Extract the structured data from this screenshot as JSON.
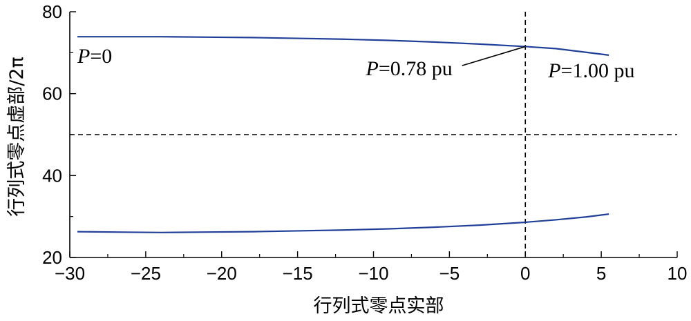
{
  "chart_data": {
    "type": "line",
    "xlabel": "行列式零点实部",
    "ylabel": "行列式零点虚部/2π",
    "xlim": [
      -30,
      10
    ],
    "ylim": [
      20,
      80
    ],
    "xticks": [
      -30,
      -25,
      -20,
      -15,
      -10,
      -5,
      0,
      5,
      10
    ],
    "xtick_labels": [
      "−30",
      "−25",
      "−20",
      "−15",
      "−10",
      "−5",
      "0",
      "5",
      "10"
    ],
    "yticks": [
      20,
      40,
      60,
      80
    ],
    "ytick_labels": [
      "20",
      "40",
      "60",
      "80"
    ],
    "grid": false,
    "series_color": "#1f3f99",
    "series": [
      {
        "x": [
          -29.5,
          -27,
          -24,
          -21,
          -18,
          -15,
          -12,
          -9,
          -6,
          -3,
          0,
          2,
          4,
          5.5
        ],
        "y": [
          73.9,
          73.9,
          73.9,
          73.8,
          73.7,
          73.5,
          73.3,
          73.0,
          72.6,
          72.1,
          71.5,
          71.0,
          70.1,
          69.4
        ]
      },
      {
        "x": [
          -29.5,
          -27,
          -24,
          -21,
          -18,
          -15,
          -12,
          -9,
          -6,
          -3,
          0,
          2,
          4,
          5.5
        ],
        "y": [
          26.3,
          26.2,
          26.1,
          26.2,
          26.3,
          26.5,
          26.7,
          27.0,
          27.4,
          27.9,
          28.6,
          29.2,
          29.9,
          30.6
        ]
      }
    ],
    "reference_lines": [
      {
        "axis": "x",
        "value": 0,
        "style": "dashed",
        "color": "#000000"
      },
      {
        "axis": "y",
        "value": 50,
        "style": "dashed",
        "color": "#000000"
      }
    ],
    "annotations": [
      {
        "italic": "P",
        "text": "=0",
        "x": -29.5,
        "y": 67.5
      },
      {
        "italic": "P",
        "text": "=0.78 pu",
        "x": -10.5,
        "y": 64.5,
        "arrow_to": [
          0,
          71.5
        ]
      },
      {
        "italic": "P",
        "text": "=1.00 pu",
        "x": 1.5,
        "y": 64.0
      }
    ]
  }
}
